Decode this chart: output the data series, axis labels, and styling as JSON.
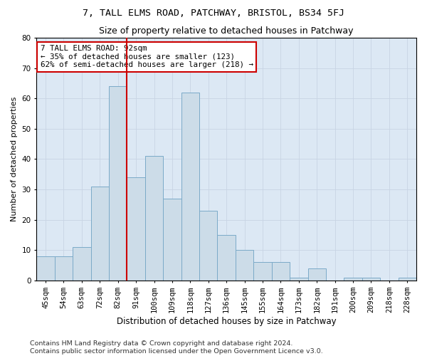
{
  "title": "7, TALL ELMS ROAD, PATCHWAY, BRISTOL, BS34 5FJ",
  "subtitle": "Size of property relative to detached houses in Patchway",
  "xlabel": "Distribution of detached houses by size in Patchway",
  "ylabel": "Number of detached properties",
  "categories": [
    "45sqm",
    "54sqm",
    "63sqm",
    "72sqm",
    "82sqm",
    "91sqm",
    "100sqm",
    "109sqm",
    "118sqm",
    "127sqm",
    "136sqm",
    "145sqm",
    "155sqm",
    "164sqm",
    "173sqm",
    "182sqm",
    "191sqm",
    "200sqm",
    "209sqm",
    "218sqm",
    "228sqm"
  ],
  "values": [
    8,
    8,
    11,
    31,
    64,
    34,
    41,
    27,
    62,
    23,
    15,
    10,
    6,
    6,
    1,
    4,
    0,
    1,
    1,
    0,
    1
  ],
  "bar_color": "#ccdce8",
  "bar_edge_color": "#7baac8",
  "vline_x": 4.5,
  "vline_color": "#cc0000",
  "annotation_text": "7 TALL ELMS ROAD: 92sqm\n← 35% of detached houses are smaller (123)\n62% of semi-detached houses are larger (218) →",
  "annotation_box_color": "#ffffff",
  "annotation_box_edge": "#cc0000",
  "ylim": [
    0,
    80
  ],
  "yticks": [
    0,
    10,
    20,
    30,
    40,
    50,
    60,
    70,
    80
  ],
  "grid_color": "#c8d4e4",
  "background_color": "#dce8f4",
  "footer1": "Contains HM Land Registry data © Crown copyright and database right 2024.",
  "footer2": "Contains public sector information licensed under the Open Government Licence v3.0.",
  "title_fontsize": 9.5,
  "subtitle_fontsize": 9,
  "xlabel_fontsize": 8.5,
  "ylabel_fontsize": 8,
  "tick_fontsize": 7.5,
  "annotation_fontsize": 7.8,
  "footer_fontsize": 6.8
}
